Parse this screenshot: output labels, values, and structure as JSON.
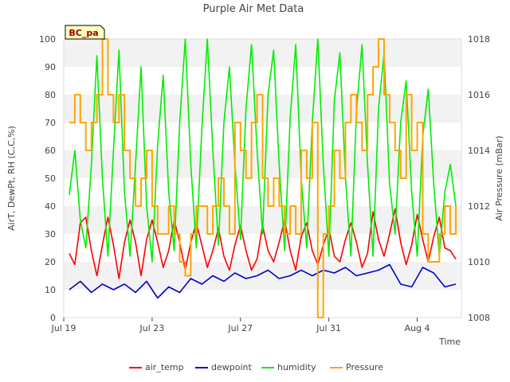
{
  "chart_data": {
    "type": "line",
    "title": "Purple Air Met Data",
    "site_label": "BC_pa",
    "xlabel": "Time",
    "ylabel": "AirT, DewPt, RH (C,C,%)",
    "y2label": "Air Pressure (mBar)",
    "x_start": "2020-07-19",
    "x_end": "2020-08-06",
    "xlim": [
      "2020-07-19",
      "2020-08-06"
    ],
    "xticks": [
      {
        "date": "2020-07-19",
        "label": "Jul 19"
      },
      {
        "date": "2020-07-23",
        "label": "Jul 23"
      },
      {
        "date": "2020-07-27",
        "label": "Jul 27"
      },
      {
        "date": "2020-07-31",
        "label": "Jul 31"
      },
      {
        "date": "2020-08-04",
        "label": "Aug 4"
      }
    ],
    "ylim": [
      0,
      100
    ],
    "yticks": [
      0,
      10,
      20,
      30,
      40,
      50,
      60,
      70,
      80,
      90,
      100
    ],
    "y2lim": [
      1008,
      1018
    ],
    "y2ticks": [
      1008,
      1010,
      1012,
      1014,
      1016,
      1018
    ],
    "grid": "horizontal alternating bands",
    "legend_position": "bottom",
    "colors": {
      "air_temp": "#ff0000",
      "dewpoint": "#0000cc",
      "humidity": "#00ee00",
      "Pressure": "#ffa500",
      "band": "#f2f2f2"
    },
    "series": [
      {
        "name": "air_temp",
        "axis": "left",
        "color": "#ff0000",
        "x": [
          "2020-07-19T06:00",
          "2020-07-19T12:00",
          "2020-07-19T18:00",
          "2020-07-20T00:00",
          "2020-07-20T06:00",
          "2020-07-20T12:00",
          "2020-07-20T18:00",
          "2020-07-21T00:00",
          "2020-07-21T06:00",
          "2020-07-21T12:00",
          "2020-07-21T18:00",
          "2020-07-22T00:00",
          "2020-07-22T06:00",
          "2020-07-22T12:00",
          "2020-07-22T18:00",
          "2020-07-23T00:00",
          "2020-07-23T06:00",
          "2020-07-23T12:00",
          "2020-07-23T18:00",
          "2020-07-24T00:00",
          "2020-07-24T06:00",
          "2020-07-24T12:00",
          "2020-07-24T18:00",
          "2020-07-25T00:00",
          "2020-07-25T06:00",
          "2020-07-25T12:00",
          "2020-07-25T18:00",
          "2020-07-26T00:00",
          "2020-07-26T06:00",
          "2020-07-26T12:00",
          "2020-07-26T18:00",
          "2020-07-27T00:00",
          "2020-07-27T06:00",
          "2020-07-27T12:00",
          "2020-07-27T18:00",
          "2020-07-28T00:00",
          "2020-07-28T06:00",
          "2020-07-28T12:00",
          "2020-07-28T18:00",
          "2020-07-29T00:00",
          "2020-07-29T06:00",
          "2020-07-29T12:00",
          "2020-07-29T18:00",
          "2020-07-30T00:00",
          "2020-07-30T06:00",
          "2020-07-30T12:00",
          "2020-07-30T18:00",
          "2020-07-31T00:00",
          "2020-07-31T06:00",
          "2020-07-31T12:00",
          "2020-07-31T18:00",
          "2020-08-01T00:00",
          "2020-08-01T06:00",
          "2020-08-01T12:00",
          "2020-08-01T18:00",
          "2020-08-02T00:00",
          "2020-08-02T06:00",
          "2020-08-02T12:00",
          "2020-08-02T18:00",
          "2020-08-03T00:00",
          "2020-08-03T06:00",
          "2020-08-03T12:00",
          "2020-08-03T18:00",
          "2020-08-04T00:00",
          "2020-08-04T06:00",
          "2020-08-04T12:00",
          "2020-08-04T18:00",
          "2020-08-05T00:00",
          "2020-08-05T06:00",
          "2020-08-05T12:00",
          "2020-08-05T18:00"
        ],
        "values": [
          23,
          19,
          34,
          36,
          24,
          15,
          26,
          36,
          26,
          14,
          27,
          35,
          27,
          15,
          28,
          35,
          27,
          18,
          24,
          35,
          27,
          17,
          27,
          34,
          26,
          18,
          24,
          32,
          22,
          17,
          26,
          33,
          24,
          17,
          21,
          33,
          24,
          20,
          27,
          35,
          24,
          17,
          29,
          34,
          24,
          19,
          26,
          32,
          22,
          20,
          28,
          34,
          27,
          18,
          23,
          38,
          28,
          22,
          30,
          39,
          27,
          19,
          26,
          37,
          28,
          20,
          29,
          36,
          25,
          24,
          21
        ]
      },
      {
        "name": "dewpoint",
        "axis": "left",
        "color": "#0000cc",
        "x": [
          "2020-07-19T06:00",
          "2020-07-19T18:00",
          "2020-07-20T06:00",
          "2020-07-20T18:00",
          "2020-07-21T06:00",
          "2020-07-21T18:00",
          "2020-07-22T06:00",
          "2020-07-22T18:00",
          "2020-07-23T06:00",
          "2020-07-23T18:00",
          "2020-07-24T06:00",
          "2020-07-24T18:00",
          "2020-07-25T06:00",
          "2020-07-25T18:00",
          "2020-07-26T06:00",
          "2020-07-26T18:00",
          "2020-07-27T06:00",
          "2020-07-27T18:00",
          "2020-07-28T06:00",
          "2020-07-28T18:00",
          "2020-07-29T06:00",
          "2020-07-29T18:00",
          "2020-07-30T06:00",
          "2020-07-30T18:00",
          "2020-07-31T06:00",
          "2020-07-31T18:00",
          "2020-08-01T06:00",
          "2020-08-01T18:00",
          "2020-08-02T06:00",
          "2020-08-02T18:00",
          "2020-08-03T06:00",
          "2020-08-03T18:00",
          "2020-08-04T06:00",
          "2020-08-04T18:00",
          "2020-08-05T06:00",
          "2020-08-05T18:00"
        ],
        "values": [
          10,
          13,
          9,
          12,
          10,
          12,
          9,
          13,
          7,
          11,
          9,
          14,
          12,
          15,
          13,
          16,
          14,
          15,
          17,
          14,
          15,
          17,
          15,
          17,
          16,
          18,
          15,
          16,
          17,
          19,
          12,
          11,
          18,
          16,
          11,
          12
        ]
      },
      {
        "name": "humidity",
        "axis": "left",
        "color": "#00ee00",
        "x": [
          "2020-07-19T06:00",
          "2020-07-19T12:00",
          "2020-07-19T18:00",
          "2020-07-20T00:00",
          "2020-07-20T06:00",
          "2020-07-20T12:00",
          "2020-07-20T18:00",
          "2020-07-21T00:00",
          "2020-07-21T06:00",
          "2020-07-21T12:00",
          "2020-07-21T18:00",
          "2020-07-22T00:00",
          "2020-07-22T06:00",
          "2020-07-22T12:00",
          "2020-07-22T18:00",
          "2020-07-23T00:00",
          "2020-07-23T06:00",
          "2020-07-23T12:00",
          "2020-07-23T18:00",
          "2020-07-24T00:00",
          "2020-07-24T06:00",
          "2020-07-24T12:00",
          "2020-07-24T18:00",
          "2020-07-25T00:00",
          "2020-07-25T06:00",
          "2020-07-25T12:00",
          "2020-07-25T18:00",
          "2020-07-26T00:00",
          "2020-07-26T06:00",
          "2020-07-26T12:00",
          "2020-07-26T18:00",
          "2020-07-27T00:00",
          "2020-07-27T06:00",
          "2020-07-27T12:00",
          "2020-07-27T18:00",
          "2020-07-28T00:00",
          "2020-07-28T06:00",
          "2020-07-28T12:00",
          "2020-07-28T18:00",
          "2020-07-29T00:00",
          "2020-07-29T06:00",
          "2020-07-29T12:00",
          "2020-07-29T18:00",
          "2020-07-30T00:00",
          "2020-07-30T06:00",
          "2020-07-30T12:00",
          "2020-07-30T18:00",
          "2020-07-31T00:00",
          "2020-07-31T06:00",
          "2020-07-31T12:00",
          "2020-07-31T18:00",
          "2020-08-01T00:00",
          "2020-08-01T06:00",
          "2020-08-01T12:00",
          "2020-08-01T18:00",
          "2020-08-02T00:00",
          "2020-08-02T06:00",
          "2020-08-02T12:00",
          "2020-08-02T18:00",
          "2020-08-03T00:00",
          "2020-08-03T06:00",
          "2020-08-03T12:00",
          "2020-08-03T18:00",
          "2020-08-04T00:00",
          "2020-08-04T06:00",
          "2020-08-04T12:00",
          "2020-08-04T18:00",
          "2020-08-05T00:00",
          "2020-08-05T06:00",
          "2020-08-05T12:00",
          "2020-08-05T18:00"
        ],
        "values": [
          44,
          60,
          35,
          25,
          55,
          94,
          50,
          22,
          60,
          96,
          45,
          22,
          55,
          90,
          40,
          20,
          62,
          87,
          45,
          24,
          70,
          100,
          55,
          25,
          68,
          100,
          60,
          26,
          70,
          90,
          55,
          28,
          75,
          98,
          60,
          30,
          80,
          96,
          55,
          24,
          72,
          98,
          50,
          25,
          70,
          100,
          55,
          22,
          78,
          95,
          50,
          22,
          74,
          98,
          55,
          22,
          75,
          95,
          48,
          30,
          70,
          85,
          45,
          22,
          65,
          82,
          48,
          22,
          45,
          55,
          40
        ]
      },
      {
        "name": "Pressure",
        "axis": "right",
        "color": "#ffa500",
        "x": [
          "2020-07-19T06:00",
          "2020-07-19T12:00",
          "2020-07-19T18:00",
          "2020-07-20T00:00",
          "2020-07-20T06:00",
          "2020-07-20T12:00",
          "2020-07-20T18:00",
          "2020-07-21T00:00",
          "2020-07-21T06:00",
          "2020-07-21T12:00",
          "2020-07-21T18:00",
          "2020-07-22T00:00",
          "2020-07-22T06:00",
          "2020-07-22T12:00",
          "2020-07-22T18:00",
          "2020-07-23T00:00",
          "2020-07-23T06:00",
          "2020-07-23T12:00",
          "2020-07-23T18:00",
          "2020-07-24T00:00",
          "2020-07-24T06:00",
          "2020-07-24T12:00",
          "2020-07-24T18:00",
          "2020-07-25T00:00",
          "2020-07-25T06:00",
          "2020-07-25T12:00",
          "2020-07-25T18:00",
          "2020-07-26T00:00",
          "2020-07-26T06:00",
          "2020-07-26T12:00",
          "2020-07-26T18:00",
          "2020-07-27T00:00",
          "2020-07-27T06:00",
          "2020-07-27T12:00",
          "2020-07-27T18:00",
          "2020-07-28T00:00",
          "2020-07-28T06:00",
          "2020-07-28T12:00",
          "2020-07-28T18:00",
          "2020-07-29T00:00",
          "2020-07-29T06:00",
          "2020-07-29T12:00",
          "2020-07-29T18:00",
          "2020-07-30T00:00",
          "2020-07-30T06:00",
          "2020-07-30T12:00",
          "2020-07-30T18:00",
          "2020-07-31T00:00",
          "2020-07-31T06:00",
          "2020-07-31T12:00",
          "2020-07-31T18:00",
          "2020-08-01T00:00",
          "2020-08-01T06:00",
          "2020-08-01T12:00",
          "2020-08-01T18:00",
          "2020-08-02T00:00",
          "2020-08-02T06:00",
          "2020-08-02T12:00",
          "2020-08-02T18:00",
          "2020-08-03T00:00",
          "2020-08-03T06:00",
          "2020-08-03T12:00",
          "2020-08-03T18:00",
          "2020-08-04T00:00",
          "2020-08-04T06:00",
          "2020-08-04T12:00",
          "2020-08-04T18:00",
          "2020-08-05T00:00",
          "2020-08-05T06:00",
          "2020-08-05T12:00",
          "2020-08-05T18:00"
        ],
        "values": [
          1015,
          1016,
          1015,
          1014,
          1015,
          1016,
          1018,
          1016,
          1015,
          1016,
          1014,
          1013,
          1012,
          1013,
          1014,
          1012,
          1011,
          1011,
          1012,
          1011,
          1010,
          1009.5,
          1011,
          1012,
          1012,
          1011,
          1012,
          1013,
          1012,
          1011,
          1015,
          1014,
          1013,
          1015,
          1016,
          1013,
          1012,
          1013,
          1012,
          1011,
          1012,
          1011,
          1014,
          1013,
          1015,
          1008,
          1011,
          1012,
          1014,
          1013,
          1015,
          1016,
          1015,
          1014,
          1016,
          1017,
          1018,
          1016,
          1015,
          1014,
          1013,
          1016,
          1014,
          1015,
          1011,
          1010,
          1010,
          1011,
          1012,
          1011,
          1012
        ]
      }
    ]
  }
}
